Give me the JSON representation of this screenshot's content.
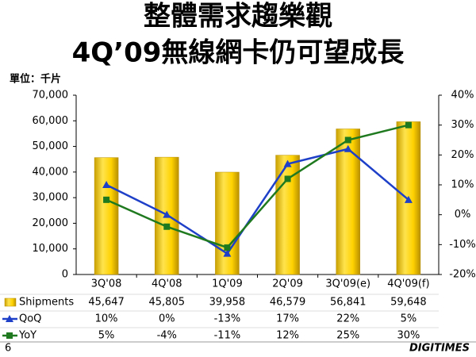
{
  "chart_data": {
    "type": "bar",
    "title": "整體需求趨樂觀",
    "subtitle": "4Q’09無線網卡仍可望成長",
    "unit_label": "單位：千片",
    "categories": [
      "3Q'08",
      "4Q'08",
      "1Q'09",
      "2Q'09",
      "3Q'09(e)",
      "4Q'09(f)"
    ],
    "series": [
      {
        "name": "Shipments",
        "type": "bar",
        "color": "#FFD200",
        "values": [
          45647,
          45805,
          39958,
          46579,
          56841,
          59648
        ],
        "value_labels": [
          "45,647",
          "45,805",
          "39,958",
          "46,579",
          "56,841",
          "59,648"
        ]
      },
      {
        "name": "QoQ",
        "type": "line",
        "axis": "y2",
        "marker": "triangle",
        "color": "#1E3FC8",
        "values": [
          10,
          0,
          -13,
          17,
          22,
          5
        ],
        "value_labels": [
          "10%",
          "0%",
          "-13%",
          "17%",
          "22%",
          "5%"
        ]
      },
      {
        "name": "YoY",
        "type": "line",
        "axis": "y2",
        "marker": "square",
        "color": "#1F7A1F",
        "values": [
          5,
          -4,
          -11,
          12,
          25,
          30
        ],
        "value_labels": [
          "5%",
          "-4%",
          "-11%",
          "12%",
          "25%",
          "30%"
        ]
      }
    ],
    "ylim": [
      0,
      70000
    ],
    "yticks": [
      0,
      {
        "value": 10000,
        "label": "10,000"
      },
      {
        "value": 20000,
        "label": "20,000"
      },
      {
        "value": 30000,
        "label": "30,000"
      },
      {
        "value": 40000,
        "label": "40,000"
      },
      {
        "value": 50000,
        "label": "50,000"
      },
      {
        "value": 60000,
        "label": "60,000"
      },
      {
        "value": 70000,
        "label": "70,000"
      }
    ],
    "y2lim": [
      -20,
      40
    ],
    "y2ticks": [
      {
        "value": -20,
        "label": "-20%"
      },
      {
        "value": -10,
        "label": "-10%"
      },
      {
        "value": 0,
        "label": "0%"
      },
      {
        "value": 10,
        "label": "10%"
      },
      {
        "value": 20,
        "label": "20%"
      },
      {
        "value": 30,
        "label": "30%"
      },
      {
        "value": 40,
        "label": "40%"
      }
    ],
    "grid": false
  },
  "page_number": "6",
  "logo": "DIGITIMES"
}
